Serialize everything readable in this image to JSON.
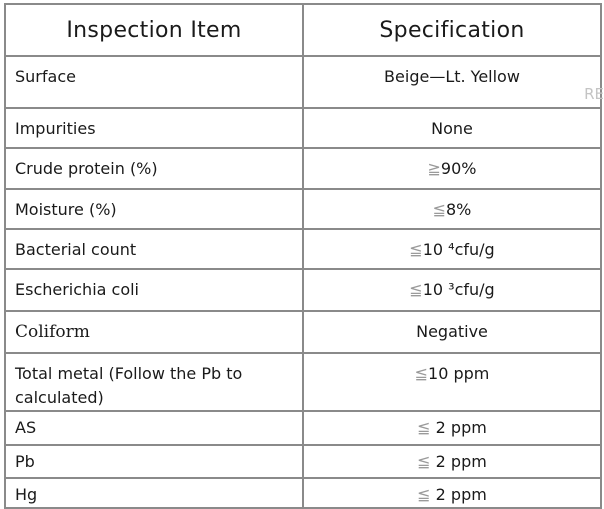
{
  "headers": [
    "Inspection Item",
    "Specification"
  ],
  "rows": [
    {
      "item": "Surface",
      "symbol": "",
      "spec": "Beige—Lt. Yellow"
    },
    {
      "item": "Impurities",
      "symbol": "",
      "spec": "None"
    },
    {
      "item": "Crude protein (%)",
      "symbol": "≧",
      "spec": "90%"
    },
    {
      "item": "Moisture (%)",
      "symbol": "≦",
      "spec": "8%"
    },
    {
      "item": "Bacterial count",
      "symbol": "≦",
      "spec": "10 ⁴cfu/g"
    },
    {
      "item": "Escherichia coli",
      "symbol": "≦",
      "spec": "10 ³cfu/g"
    },
    {
      "item": "Coliform",
      "symbol": "",
      "spec": "Negative"
    },
    {
      "item": "Total metal (Follow the Pb to calculated)",
      "symbol": "≦",
      "spec": "10 ppm"
    },
    {
      "item": "AS",
      "symbol": "≦",
      "spec": " 2 ppm"
    },
    {
      "item": "Pb",
      "symbol": "≦",
      "spec": " 2 ppm"
    },
    {
      "item": "Hg",
      "symbol": "≦",
      "spec": " 2 ppm"
    }
  ],
  "watermark": "RE"
}
